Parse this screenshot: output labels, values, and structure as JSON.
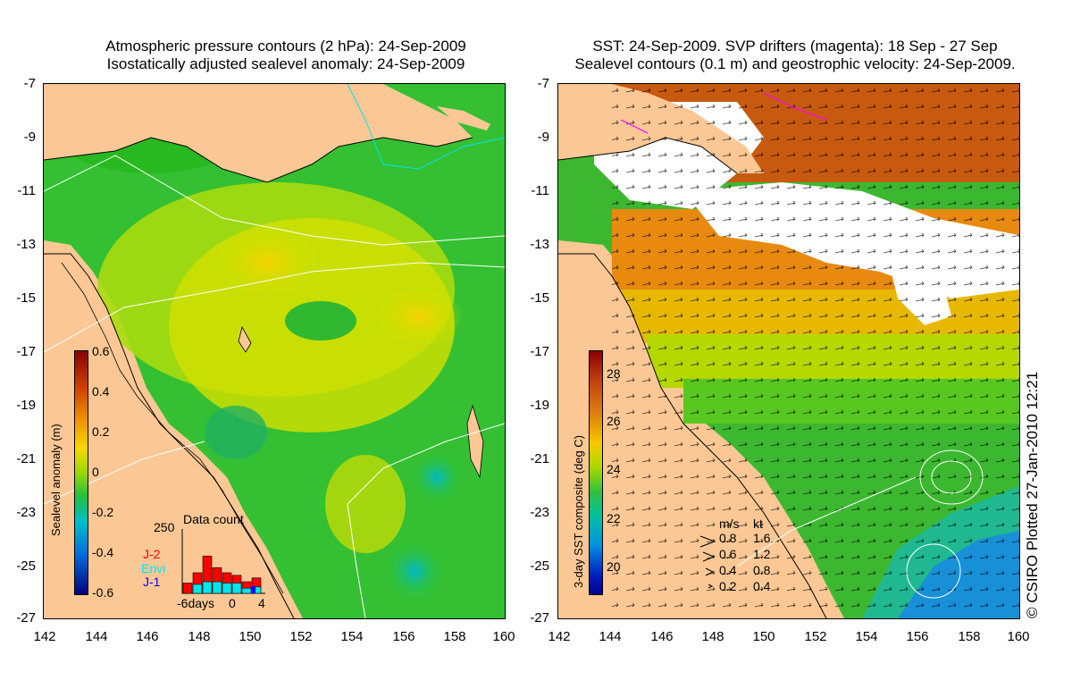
{
  "left_panel": {
    "title_line1": "Atmospheric pressure contours (2 hPa): 24-Sep-2009",
    "title_line2": "Isostatically adjusted sealevel anomaly: 24-Sep-2009",
    "colorbar": {
      "label": "Sealevel anomaly (m)",
      "ticks": [
        "0.6",
        "0.4",
        "0.2",
        "0",
        "-0.2",
        "-0.4",
        "-0.6"
      ]
    },
    "data_count": {
      "title": "Data count",
      "y_max_label": "250",
      "x_labels": [
        "-6days",
        "0",
        "4"
      ],
      "legend": [
        {
          "name": "J-2",
          "color": "#ff0000"
        },
        {
          "name": "Envi",
          "color": "#00e5ee"
        },
        {
          "name": "J-1",
          "color": "#0000ff"
        }
      ],
      "bars": [
        {
          "total": 40,
          "cyan": 0
        },
        {
          "total": 80,
          "cyan": 35
        },
        {
          "total": 145,
          "cyan": 45
        },
        {
          "total": 100,
          "cyan": 45
        },
        {
          "total": 80,
          "cyan": 40
        },
        {
          "total": 70,
          "cyan": 40
        },
        {
          "total": 45,
          "cyan": 20
        },
        {
          "total": 60,
          "cyan": 25
        }
      ]
    }
  },
  "right_panel": {
    "title_line1": "SST: 24-Sep-2009. SVP drifters (magenta): 18 Sep - 27 Sep",
    "title_line2": "Sealevel contours (0.1 m) and geostrophic velocity: 24-Sep-2009.",
    "colorbar": {
      "label": "3-day SST composite (deg C)",
      "ticks": [
        "28",
        "26",
        "24",
        "22",
        "20"
      ]
    },
    "velocity_legend": {
      "header_ms": "m/s",
      "header_kt": "kt",
      "rows": [
        {
          "ms": "0.8",
          "kt": "1.6"
        },
        {
          "ms": "0.6",
          "kt": "1.2"
        },
        {
          "ms": "0.4",
          "kt": "0.8"
        },
        {
          "ms": "0.2",
          "kt": "0.4"
        }
      ]
    }
  },
  "axes": {
    "lat_labels": [
      "-7",
      "-9",
      "-11",
      "-13",
      "-15",
      "-17",
      "-19",
      "-21",
      "-23",
      "-25",
      "-27"
    ],
    "lon_labels": [
      "142",
      "144",
      "146",
      "148",
      "150",
      "152",
      "154",
      "156",
      "158",
      "160"
    ]
  },
  "credit": "© CSIRO Plotted 27-Jan-2010 12:21",
  "colors": {
    "land": "#fbc895",
    "sla_low": "#000080",
    "sla_high": "#8b0000",
    "sst_low": "#00008b",
    "sst_high": "#8b0000"
  }
}
